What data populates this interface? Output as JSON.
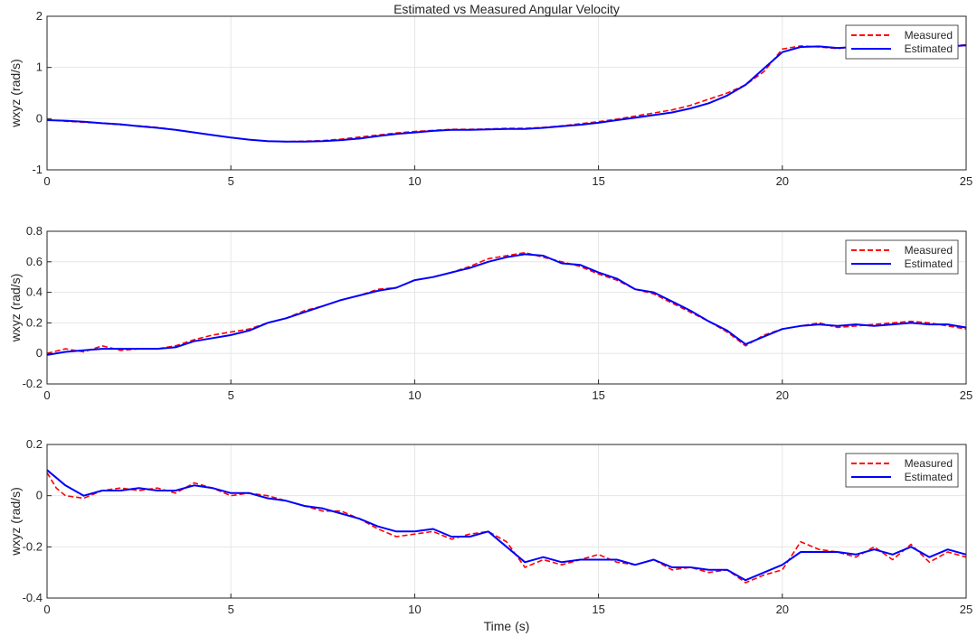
{
  "figure": {
    "title": "Estimated vs Measured Angular Velocity",
    "xlabel": "Time (s)"
  },
  "colors": {
    "measured": "#ff0000",
    "estimated": "#0000ff",
    "grid": "#e6e6e6",
    "axes": "#262626"
  },
  "chart_data": [
    {
      "type": "line",
      "ylabel": "wxyz (rad/s)",
      "xlim": [
        0,
        25
      ],
      "ylim": [
        -1,
        2
      ],
      "xticks": [
        0,
        5,
        10,
        15,
        20,
        25
      ],
      "yticks": [
        -1,
        0,
        1,
        2
      ],
      "grid": true,
      "legend": "top-right",
      "series": [
        {
          "name": "Measured",
          "style": "dashed",
          "x": [
            0,
            0.5,
            1,
            1.5,
            2,
            2.5,
            3,
            3.5,
            4,
            4.5,
            5,
            5.5,
            6,
            6.5,
            7,
            7.5,
            8,
            8.5,
            9,
            9.5,
            10,
            10.5,
            11,
            11.5,
            12,
            12.5,
            13,
            13.5,
            14,
            14.5,
            15,
            15.5,
            16,
            16.5,
            17,
            17.5,
            18,
            18.5,
            19,
            19.5,
            20,
            20.5,
            21,
            21.5,
            22,
            22.5,
            23,
            23.5,
            24,
            24.5,
            25
          ],
          "y": [
            -0.02,
            -0.05,
            -0.07,
            -0.09,
            -0.12,
            -0.14,
            -0.17,
            -0.22,
            -0.27,
            -0.32,
            -0.37,
            -0.41,
            -0.44,
            -0.45,
            -0.44,
            -0.43,
            -0.4,
            -0.36,
            -0.32,
            -0.28,
            -0.25,
            -0.23,
            -0.21,
            -0.21,
            -0.2,
            -0.19,
            -0.19,
            -0.17,
            -0.14,
            -0.1,
            -0.06,
            -0.01,
            0.05,
            0.11,
            0.17,
            0.26,
            0.38,
            0.5,
            0.66,
            0.92,
            1.36,
            1.42,
            1.4,
            1.37,
            1.41,
            1.43,
            1.42,
            1.44,
            1.43,
            1.42,
            1.44
          ]
        },
        {
          "name": "Estimated",
          "style": "solid",
          "x": [
            0,
            0.5,
            1,
            1.5,
            2,
            2.5,
            3,
            3.5,
            4,
            4.5,
            5,
            5.5,
            6,
            6.5,
            7,
            7.5,
            8,
            8.5,
            9,
            9.5,
            10,
            10.5,
            11,
            11.5,
            12,
            12.5,
            13,
            13.5,
            14,
            14.5,
            15,
            15.5,
            16,
            16.5,
            17,
            17.5,
            18,
            18.5,
            19,
            19.5,
            20,
            20.5,
            21,
            21.5,
            22,
            22.5,
            23,
            23.5,
            24,
            24.5,
            25
          ],
          "y": [
            -0.03,
            -0.04,
            -0.06,
            -0.09,
            -0.11,
            -0.15,
            -0.18,
            -0.22,
            -0.27,
            -0.32,
            -0.37,
            -0.41,
            -0.44,
            -0.45,
            -0.45,
            -0.44,
            -0.42,
            -0.39,
            -0.34,
            -0.3,
            -0.27,
            -0.24,
            -0.22,
            -0.22,
            -0.21,
            -0.2,
            -0.2,
            -0.18,
            -0.15,
            -0.12,
            -0.08,
            -0.03,
            0.02,
            0.07,
            0.12,
            0.2,
            0.3,
            0.45,
            0.66,
            0.98,
            1.3,
            1.4,
            1.41,
            1.38,
            1.4,
            1.42,
            1.42,
            1.43,
            1.42,
            1.41,
            1.43
          ]
        }
      ]
    },
    {
      "type": "line",
      "ylabel": "wxyz (rad/s)",
      "xlim": [
        0,
        25
      ],
      "ylim": [
        -0.2,
        0.8
      ],
      "xticks": [
        0,
        5,
        10,
        15,
        20,
        25
      ],
      "yticks": [
        -0.2,
        0,
        0.2,
        0.4,
        0.6,
        0.8
      ],
      "grid": true,
      "legend": "top-right",
      "series": [
        {
          "name": "Measured",
          "style": "dashed",
          "x": [
            0,
            0.5,
            1,
            1.5,
            2,
            2.5,
            3,
            3.5,
            4,
            4.5,
            5,
            5.5,
            6,
            6.5,
            7,
            7.5,
            8,
            8.5,
            9,
            9.5,
            10,
            10.5,
            11,
            11.5,
            12,
            12.5,
            13,
            13.5,
            14,
            14.5,
            15,
            15.5,
            16,
            16.5,
            17,
            17.5,
            18,
            18.5,
            19,
            19.5,
            20,
            20.5,
            21,
            21.5,
            22,
            22.5,
            23,
            23.5,
            24,
            24.5,
            25
          ],
          "y": [
            0.0,
            0.03,
            0.01,
            0.05,
            0.02,
            0.03,
            0.03,
            0.05,
            0.09,
            0.12,
            0.14,
            0.16,
            0.2,
            0.23,
            0.28,
            0.31,
            0.35,
            0.38,
            0.42,
            0.43,
            0.48,
            0.5,
            0.53,
            0.57,
            0.62,
            0.64,
            0.66,
            0.63,
            0.6,
            0.57,
            0.52,
            0.48,
            0.42,
            0.39,
            0.33,
            0.27,
            0.21,
            0.14,
            0.05,
            0.12,
            0.16,
            0.18,
            0.2,
            0.17,
            0.18,
            0.19,
            0.2,
            0.21,
            0.2,
            0.18,
            0.16
          ]
        },
        {
          "name": "Estimated",
          "style": "solid",
          "x": [
            0,
            0.5,
            1,
            1.5,
            2,
            2.5,
            3,
            3.5,
            4,
            4.5,
            5,
            5.5,
            6,
            6.5,
            7,
            7.5,
            8,
            8.5,
            9,
            9.5,
            10,
            10.5,
            11,
            11.5,
            12,
            12.5,
            13,
            13.5,
            14,
            14.5,
            15,
            15.5,
            16,
            16.5,
            17,
            17.5,
            18,
            18.5,
            19,
            19.5,
            20,
            20.5,
            21,
            21.5,
            22,
            22.5,
            23,
            23.5,
            24,
            24.5,
            25
          ],
          "y": [
            -0.01,
            0.01,
            0.02,
            0.03,
            0.03,
            0.03,
            0.03,
            0.04,
            0.08,
            0.1,
            0.12,
            0.15,
            0.2,
            0.23,
            0.27,
            0.31,
            0.35,
            0.38,
            0.41,
            0.43,
            0.48,
            0.5,
            0.53,
            0.56,
            0.6,
            0.63,
            0.65,
            0.64,
            0.59,
            0.58,
            0.53,
            0.49,
            0.42,
            0.4,
            0.34,
            0.28,
            0.21,
            0.15,
            0.06,
            0.11,
            0.16,
            0.18,
            0.19,
            0.18,
            0.19,
            0.18,
            0.19,
            0.2,
            0.19,
            0.19,
            0.17
          ]
        }
      ]
    },
    {
      "type": "line",
      "ylabel": "wxyz (rad/s)",
      "xlim": [
        0,
        25
      ],
      "ylim": [
        -0.4,
        0.2
      ],
      "xticks": [
        0,
        5,
        10,
        15,
        20,
        25
      ],
      "yticks": [
        -0.4,
        -0.2,
        0,
        0.2
      ],
      "grid": true,
      "legend": "top-right",
      "series": [
        {
          "name": "Measured",
          "style": "dashed",
          "x": [
            0,
            0.25,
            0.5,
            1,
            1.5,
            2,
            2.5,
            3,
            3.5,
            4,
            4.5,
            5,
            5.5,
            6,
            6.5,
            7,
            7.5,
            8,
            8.5,
            9,
            9.5,
            10,
            10.5,
            11,
            11.5,
            12,
            12.5,
            13,
            13.5,
            14,
            14.5,
            15,
            15.5,
            16,
            16.5,
            17,
            17.5,
            18,
            18.5,
            19,
            19.5,
            20,
            20.5,
            21,
            21.5,
            22,
            22.5,
            23,
            23.5,
            24,
            24.5,
            25
          ],
          "y": [
            0.09,
            0.03,
            0.0,
            -0.01,
            0.02,
            0.03,
            0.02,
            0.03,
            0.01,
            0.05,
            0.03,
            0.0,
            0.01,
            0.0,
            -0.02,
            -0.04,
            -0.06,
            -0.06,
            -0.09,
            -0.13,
            -0.16,
            -0.15,
            -0.14,
            -0.17,
            -0.15,
            -0.14,
            -0.18,
            -0.28,
            -0.25,
            -0.27,
            -0.25,
            -0.23,
            -0.26,
            -0.27,
            -0.25,
            -0.29,
            -0.28,
            -0.3,
            -0.29,
            -0.34,
            -0.31,
            -0.29,
            -0.18,
            -0.21,
            -0.22,
            -0.24,
            -0.2,
            -0.25,
            -0.19,
            -0.26,
            -0.22,
            -0.24
          ]
        },
        {
          "name": "Estimated",
          "style": "solid",
          "x": [
            0,
            0.25,
            0.5,
            1,
            1.5,
            2,
            2.5,
            3,
            3.5,
            4,
            4.5,
            5,
            5.5,
            6,
            6.5,
            7,
            7.5,
            8,
            8.5,
            9,
            9.5,
            10,
            10.5,
            11,
            11.5,
            12,
            12.5,
            13,
            13.5,
            14,
            14.5,
            15,
            15.5,
            16,
            16.5,
            17,
            17.5,
            18,
            18.5,
            19,
            19.5,
            20,
            20.5,
            21,
            21.5,
            22,
            22.5,
            23,
            23.5,
            24,
            24.5,
            25
          ],
          "y": [
            0.1,
            0.07,
            0.04,
            0.0,
            0.02,
            0.02,
            0.03,
            0.02,
            0.02,
            0.04,
            0.03,
            0.01,
            0.01,
            -0.01,
            -0.02,
            -0.04,
            -0.05,
            -0.07,
            -0.09,
            -0.12,
            -0.14,
            -0.14,
            -0.13,
            -0.16,
            -0.16,
            -0.14,
            -0.2,
            -0.26,
            -0.24,
            -0.26,
            -0.25,
            -0.25,
            -0.25,
            -0.27,
            -0.25,
            -0.28,
            -0.28,
            -0.29,
            -0.29,
            -0.33,
            -0.3,
            -0.27,
            -0.22,
            -0.22,
            -0.22,
            -0.23,
            -0.21,
            -0.23,
            -0.2,
            -0.24,
            -0.21,
            -0.23
          ]
        }
      ]
    }
  ]
}
